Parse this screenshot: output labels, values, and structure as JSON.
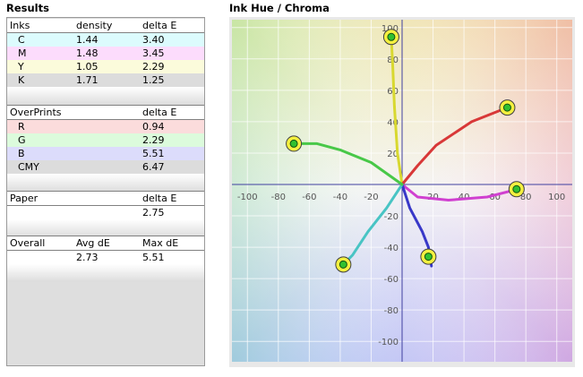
{
  "results": {
    "title": "Results",
    "inks": {
      "headers": [
        "Inks",
        "density",
        "delta E"
      ],
      "rows": [
        {
          "name": "C",
          "density": "1.44",
          "deltaE": "3.40",
          "color": "#dcfbfd"
        },
        {
          "name": "M",
          "density": "1.48",
          "deltaE": "3.45",
          "color": "#fcdcfc"
        },
        {
          "name": "Y",
          "density": "1.05",
          "deltaE": "2.29",
          "color": "#fbfbdb"
        },
        {
          "name": "K",
          "density": "1.71",
          "deltaE": "1.25",
          "color": "#dcdcdc"
        }
      ]
    },
    "overprints": {
      "headers": [
        "OverPrints",
        "",
        "delta E"
      ],
      "rows": [
        {
          "name": "R",
          "deltaE": "0.94",
          "color": "#fbdcdc"
        },
        {
          "name": "G",
          "deltaE": "2.29",
          "color": "#dcfbdc"
        },
        {
          "name": "B",
          "deltaE": "5.51",
          "color": "#dcdcfb"
        },
        {
          "name": "CMY",
          "deltaE": "6.47",
          "color": "#dcdcdc"
        }
      ]
    },
    "paper": {
      "headers": [
        "Paper",
        "",
        "delta E"
      ],
      "value": "2.75"
    },
    "overall": {
      "headers": [
        "Overall",
        "Avg dE",
        "Max dE"
      ],
      "avg": "2.73",
      "max": "5.51"
    }
  },
  "chart_title": "Ink Hue / Chroma",
  "chart_data": {
    "type": "line",
    "title": "",
    "xlabel": "",
    "ylabel": "",
    "xlim": [
      -110,
      110
    ],
    "ylim": [
      -113,
      105
    ],
    "xticks": [
      -100,
      -80,
      -60,
      -40,
      -20,
      20,
      40,
      60,
      80,
      100
    ],
    "yticks": [
      100,
      80,
      60,
      40,
      20,
      -20,
      -40,
      -60,
      -80,
      -100
    ],
    "xtick_labels": [
      "-100",
      "-80",
      "-60",
      "-40",
      "-20",
      "20",
      "40",
      "60",
      "80",
      "100"
    ],
    "ytick_labels": [
      "100",
      "80",
      "60",
      "40",
      "20",
      "-20",
      "-40",
      "-60",
      "-80",
      "-100"
    ],
    "grid": true,
    "series": [
      {
        "color": "#d8d830",
        "x": [
          0,
          -3,
          -5,
          -6,
          -7
        ],
        "y": [
          0,
          20,
          50,
          75,
          94
        ],
        "marker": [
          -7,
          94
        ]
      },
      {
        "color": "#d83838",
        "x": [
          0,
          10,
          22,
          45,
          68
        ],
        "y": [
          0,
          12,
          25,
          40,
          49
        ],
        "marker": [
          68,
          49
        ]
      },
      {
        "color": "#d040d0",
        "x": [
          0,
          10,
          30,
          55,
          75
        ],
        "y": [
          0,
          -8,
          -10,
          -8,
          -3
        ],
        "marker": [
          74,
          -3
        ]
      },
      {
        "color": "#3838c8",
        "x": [
          0,
          5,
          13,
          17,
          19
        ],
        "y": [
          0,
          -15,
          -30,
          -40,
          -52
        ],
        "marker": [
          17,
          -46
        ]
      },
      {
        "color": "#48c4c4",
        "x": [
          0,
          -10,
          -22,
          -32,
          -38
        ],
        "y": [
          0,
          -15,
          -30,
          -45,
          -51
        ],
        "marker": [
          -38,
          -51
        ]
      },
      {
        "color": "#48c848",
        "x": [
          0,
          -20,
          -40,
          -55,
          -70
        ],
        "y": [
          0,
          14,
          22,
          26,
          26
        ],
        "marker": [
          -70,
          26
        ]
      }
    ]
  }
}
